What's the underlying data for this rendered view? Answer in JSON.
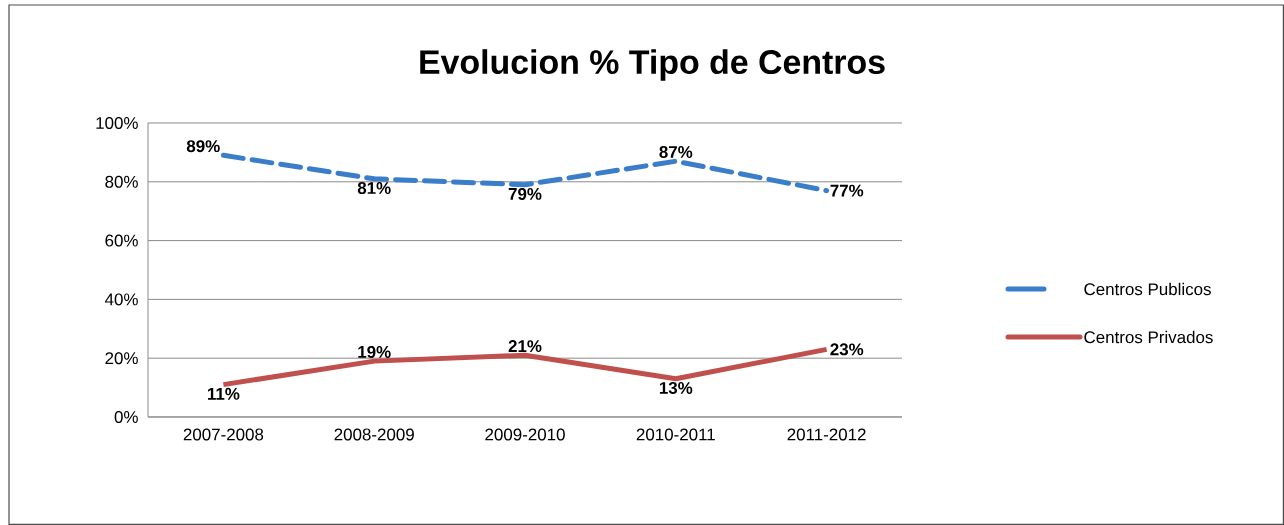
{
  "chart_data": {
    "type": "line",
    "title": "Evolucion % Tipo de Centros",
    "categories": [
      "2007-2008",
      "2008-2009",
      "2009-2010",
      "2010-2011",
      "2011-2012"
    ],
    "series": [
      {
        "name": "Centros Publicos",
        "color": "#3a7dc9",
        "line_style": "dashed",
        "values": [
          89,
          81,
          79,
          87,
          77
        ],
        "value_labels": [
          "89%",
          "81%",
          "79%",
          "87%",
          "77%"
        ]
      },
      {
        "name": "Centros Privados",
        "color": "#c0504d",
        "line_style": "solid",
        "values": [
          11,
          19,
          21,
          13,
          23
        ],
        "value_labels": [
          "11%",
          "19%",
          "21%",
          "13%",
          "23%"
        ]
      }
    ],
    "ylim": [
      0,
      100
    ],
    "yticks": [
      {
        "value": 0,
        "label": "0%"
      },
      {
        "value": 20,
        "label": "20%"
      },
      {
        "value": 40,
        "label": "40%"
      },
      {
        "value": 60,
        "label": "60%"
      },
      {
        "value": 80,
        "label": "80%"
      },
      {
        "value": 100,
        "label": "100%"
      }
    ],
    "grid": "y",
    "legend": "right",
    "marker": "none"
  }
}
